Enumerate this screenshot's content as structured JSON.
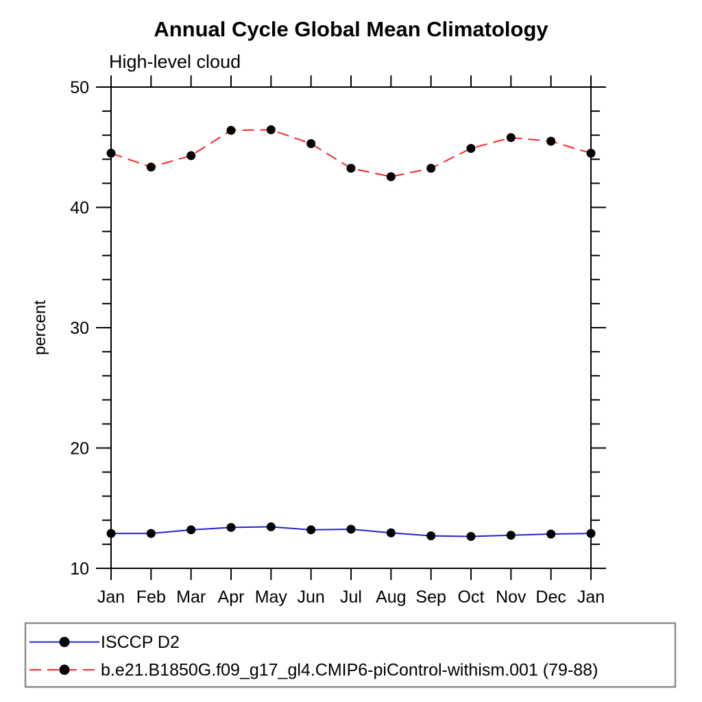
{
  "chart_data": {
    "type": "line",
    "title": "Annual Cycle Global Mean Climatology",
    "subtitle": "High-level cloud",
    "xlabel": "",
    "ylabel": "percent",
    "x_tick_labels": [
      "Jan",
      "Feb",
      "Mar",
      "Apr",
      "May",
      "Jun",
      "Jul",
      "Aug",
      "Sep",
      "Oct",
      "Nov",
      "Dec",
      "Jan"
    ],
    "ylim": [
      10,
      50
    ],
    "y_major_ticks": [
      10,
      20,
      30,
      40,
      50
    ],
    "y_minor_step": 2,
    "grid": false,
    "legend_position": "bottom-left-box",
    "marker": "filled-circle",
    "marker_color": "#000000",
    "axis_color": "#000000",
    "legend_border_color": "#8c8c8c",
    "series": [
      {
        "name": "ISCCP D2",
        "color": "#2222cc",
        "style": "solid",
        "values": [
          12.9,
          12.9,
          13.2,
          13.4,
          13.45,
          13.2,
          13.25,
          12.95,
          12.7,
          12.65,
          12.75,
          12.85,
          12.9
        ]
      },
      {
        "name": "b.e21.B1850G.f09_g17_gl4.CMIP6-piControl-withism.001 (79-88)",
        "color": "#ff2222",
        "style": "dashed",
        "values": [
          44.5,
          43.35,
          44.3,
          46.4,
          46.45,
          45.3,
          43.25,
          42.55,
          43.25,
          44.9,
          45.8,
          45.5,
          44.5
        ]
      }
    ]
  }
}
